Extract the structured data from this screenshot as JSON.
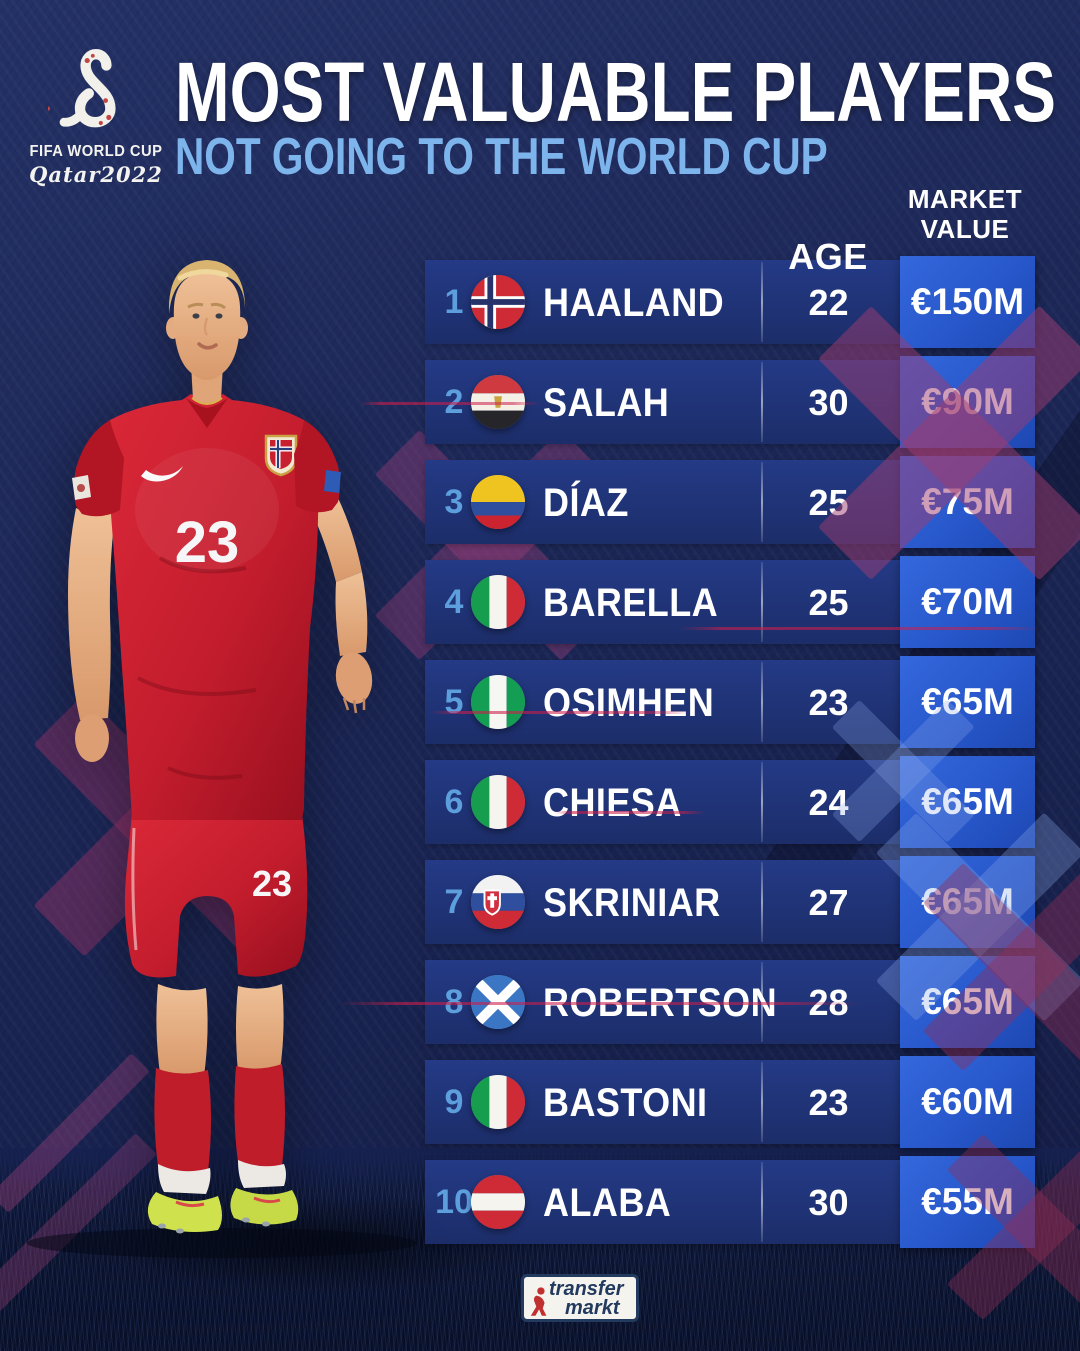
{
  "header": {
    "event_logo": {
      "icon": "fifa-world-cup-qatar-2022-logo",
      "line1": "FIFA WORLD CUP",
      "line2": "Qatar2022"
    },
    "title": "MOST VALUABLE PLAYERS",
    "subtitle": "NOT GOING TO THE WORLD CUP"
  },
  "chart_data": {
    "type": "table",
    "title": "MOST VALUABLE PLAYERS",
    "subtitle": "NOT GOING TO THE WORLD CUP",
    "columns": {
      "age": "AGE",
      "market_value": "MARKET VALUE"
    },
    "rows": [
      {
        "rank": "1",
        "flag": "norway",
        "player": "HAALAND",
        "age": "22",
        "value": "€150M",
        "value_meur": 150
      },
      {
        "rank": "2",
        "flag": "egypt",
        "player": "SALAH",
        "age": "30",
        "value": "€90M",
        "value_meur": 90
      },
      {
        "rank": "3",
        "flag": "colombia",
        "player": "DÍAZ",
        "age": "25",
        "value": "€75M",
        "value_meur": 75
      },
      {
        "rank": "4",
        "flag": "italy",
        "player": "BARELLA",
        "age": "25",
        "value": "€70M",
        "value_meur": 70
      },
      {
        "rank": "5",
        "flag": "nigeria",
        "player": "OSIMHEN",
        "age": "23",
        "value": "€65M",
        "value_meur": 65
      },
      {
        "rank": "6",
        "flag": "italy",
        "player": "CHIESA",
        "age": "24",
        "value": "€65M",
        "value_meur": 65
      },
      {
        "rank": "7",
        "flag": "slovakia",
        "player": "SKRINIAR",
        "age": "27",
        "value": "€65M",
        "value_meur": 65
      },
      {
        "rank": "8",
        "flag": "scotland",
        "player": "ROBERTSON",
        "age": "28",
        "value": "€65M",
        "value_meur": 65
      },
      {
        "rank": "9",
        "flag": "italy",
        "player": "BASTONI",
        "age": "23",
        "value": "€60M",
        "value_meur": 60
      },
      {
        "rank": "10",
        "flag": "austria",
        "player": "ALABA",
        "age": "30",
        "value": "€55M",
        "value_meur": 55
      }
    ]
  },
  "photo": {
    "shirt_number": "23",
    "shorts_number": "23"
  },
  "footer": {
    "brand": {
      "icon": "transfermarkt-logo",
      "line1": "transfer",
      "line2": "markt"
    }
  },
  "colors": {
    "background_navy": "#1c2757",
    "row_blue": "#1e3070",
    "value_box_blue": "#2a5ecf",
    "subtitle_light_blue": "#7db4eb",
    "rank_blue": "#5d9edd",
    "x_mark_maroon": "#9e3c70",
    "x_mark_light_blue": "#8caae8",
    "jersey_red": "#c31d2d",
    "boot_volt": "#cfe24e",
    "text_white": "#ffffff"
  }
}
